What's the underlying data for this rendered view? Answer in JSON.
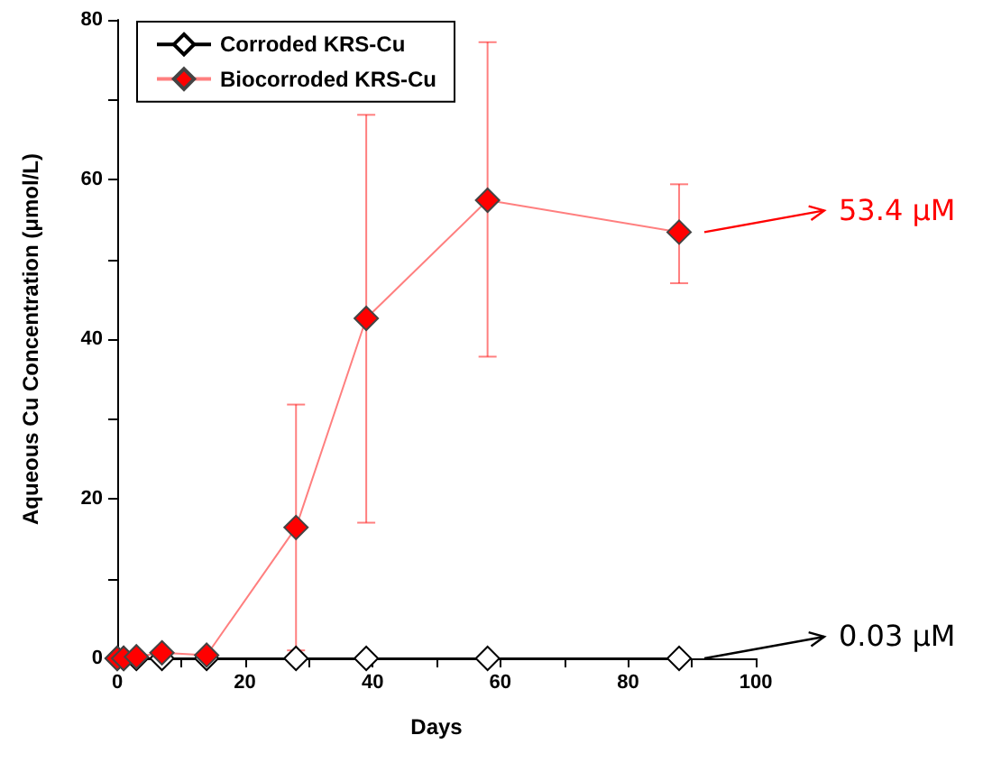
{
  "chart_data": {
    "type": "line",
    "xlabel": "Days",
    "ylabel": "Aqueous Cu Concentration (μmol/L)",
    "xlim": [
      0,
      100
    ],
    "xticks": [
      0,
      {
        "value": 10,
        "label": null
      },
      20,
      {
        "value": 30,
        "label": null
      },
      40,
      {
        "value": 50,
        "label": null
      },
      60,
      {
        "value": 70,
        "label": null
      },
      80,
      {
        "value": 90,
        "label": null
      },
      100
    ],
    "ylim": [
      0,
      80
    ],
    "yticks": [
      0,
      {
        "value": 10,
        "label": null
      },
      20,
      {
        "value": 30,
        "label": null
      },
      40,
      {
        "value": 50,
        "label": null
      },
      60,
      {
        "value": 70,
        "label": null
      },
      80
    ],
    "x": [
      0,
      1,
      3,
      7,
      14,
      28,
      39,
      58,
      88
    ],
    "series": [
      {
        "name": "Corroded KRS-Cu",
        "color": "#000000",
        "values": [
          0,
          0,
          0,
          0,
          0,
          0,
          0,
          0,
          0
        ]
      },
      {
        "name": "Biocorroded KRS-Cu",
        "color": "#ff0000",
        "values": [
          0,
          0,
          0.2,
          0.7,
          0.4,
          16.4,
          42.6,
          57.4,
          53.4
        ],
        "errors": [
          null,
          null,
          null,
          null,
          null,
          [
            1,
            31.8
          ],
          [
            17,
            68.1
          ],
          [
            37.8,
            77.2
          ],
          [
            47,
            59.4
          ]
        ]
      }
    ],
    "annotations": [
      "0.03 μM",
      "53.4 μM"
    ],
    "marker": "diamond",
    "line_style": "solid",
    "legend": "top left",
    "grid": false
  }
}
